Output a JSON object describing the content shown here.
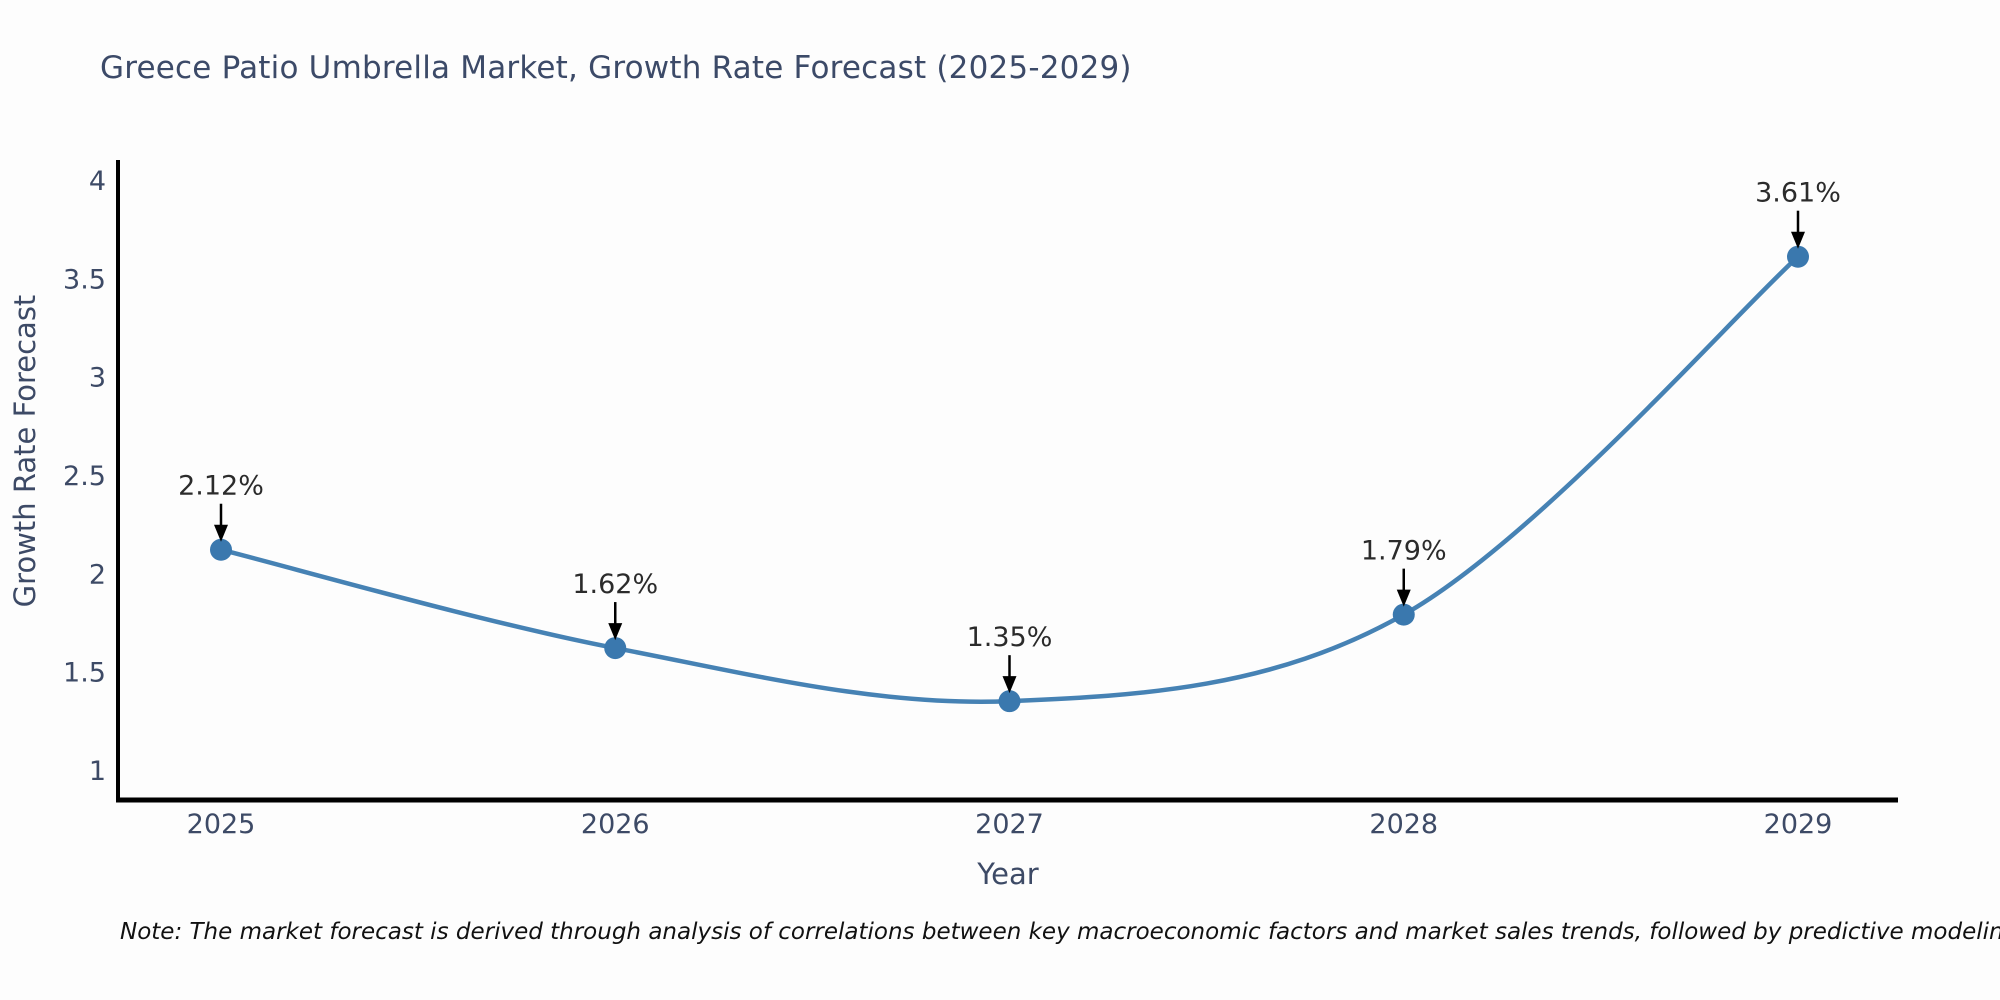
{
  "page": {
    "note": "Note: The market forecast is derived through analysis of correlations between key macroeconomic factors and market sales trends, followed by predictive modeling to project future sales"
  },
  "chart_data": {
    "type": "line",
    "title": "Greece Patio Umbrella Market, Growth Rate Forecast (2025-2029)",
    "xlabel": "Year",
    "ylabel": "Growth Rate Forecast",
    "categories": [
      "2025",
      "2026",
      "2027",
      "2028",
      "2029"
    ],
    "series": [
      {
        "name": "Growth Rate Forecast",
        "values": [
          2.12,
          1.62,
          1.35,
          1.79,
          3.61
        ],
        "point_labels": [
          "2.12%",
          "1.62%",
          "1.35%",
          "1.79%",
          "3.61%"
        ]
      }
    ],
    "yticks": [
      1,
      1.5,
      2,
      2.5,
      3,
      3.5,
      4
    ],
    "ylim": [
      0.85,
      4.1
    ],
    "grid": false,
    "legend_position": "none",
    "smooth": true,
    "colors": {
      "line": "#4682b4",
      "marker": "#3a78ae",
      "axis": "#000000",
      "axis_text": "#3d4a66",
      "annotation_text": "#2b2b2b",
      "annotation_arrow": "#000000",
      "title_text": "#3c4a68",
      "note_text": "#111111"
    }
  }
}
